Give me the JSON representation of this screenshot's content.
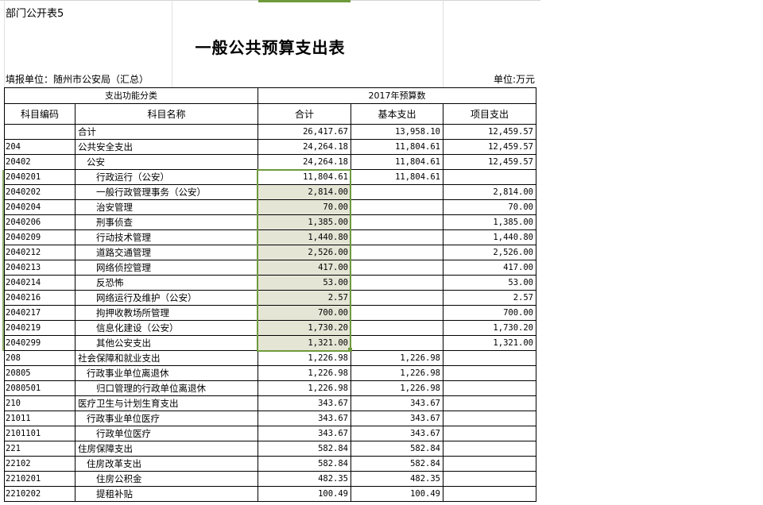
{
  "sheet_label": "部门公开表5",
  "title": "一般公共预算支出表",
  "reporting_unit": "填报单位：随州市公安局（汇总）",
  "currency_unit": "单位:万元",
  "headers": {
    "group_left": "支出功能分类",
    "group_right": "2017年预算数",
    "code": "科目编码",
    "name": "科目名称",
    "total": "合计",
    "basic": "基本支出",
    "project": "项目支出"
  },
  "selection_color": "#6e9a3c",
  "rows": [
    {
      "code": "",
      "name": "合计",
      "level": 1,
      "total": "26,417.67",
      "basic": "13,958.10",
      "project": "12,459.57"
    },
    {
      "code": "204",
      "name": "公共安全支出",
      "level": 1,
      "total": "24,264.18",
      "basic": "11,804.61",
      "project": "12,459.57"
    },
    {
      "code": "20402",
      "name": "公安",
      "level": 2,
      "total": "24,264.18",
      "basic": "11,804.61",
      "project": "12,459.57"
    },
    {
      "code": "2040201",
      "name": "行政运行（公安）",
      "level": 3,
      "total": "11,804.61",
      "basic": "11,804.61",
      "project": ""
    },
    {
      "code": "2040202",
      "name": "一般行政管理事务（公安）",
      "level": 3,
      "total": "2,814.00",
      "basic": "",
      "project": "2,814.00"
    },
    {
      "code": "2040204",
      "name": "治安管理",
      "level": 3,
      "total": "70.00",
      "basic": "",
      "project": "70.00"
    },
    {
      "code": "2040206",
      "name": "刑事侦查",
      "level": 3,
      "total": "1,385.00",
      "basic": "",
      "project": "1,385.00"
    },
    {
      "code": "2040209",
      "name": "行动技术管理",
      "level": 3,
      "total": "1,440.80",
      "basic": "",
      "project": "1,440.80"
    },
    {
      "code": "2040212",
      "name": "道路交通管理",
      "level": 3,
      "total": "2,526.00",
      "basic": "",
      "project": "2,526.00"
    },
    {
      "code": "2040213",
      "name": "网络侦控管理",
      "level": 3,
      "total": "417.00",
      "basic": "",
      "project": "417.00"
    },
    {
      "code": "2040214",
      "name": "反恐怖",
      "level": 3,
      "total": "53.00",
      "basic": "",
      "project": "53.00"
    },
    {
      "code": "2040216",
      "name": "网络运行及维护（公安）",
      "level": 3,
      "total": "2.57",
      "basic": "",
      "project": "2.57"
    },
    {
      "code": "2040217",
      "name": "拘押收教场所管理",
      "level": 3,
      "total": "700.00",
      "basic": "",
      "project": "700.00"
    },
    {
      "code": "2040219",
      "name": "信息化建设（公安）",
      "level": 3,
      "total": "1,730.20",
      "basic": "",
      "project": "1,730.20"
    },
    {
      "code": "2040299",
      "name": "其他公安支出",
      "level": 3,
      "total": "1,321.00",
      "basic": "",
      "project": "1,321.00"
    },
    {
      "code": "208",
      "name": "社会保障和就业支出",
      "level": 1,
      "total": "1,226.98",
      "basic": "1,226.98",
      "project": ""
    },
    {
      "code": "20805",
      "name": "行政事业单位离退休",
      "level": 2,
      "total": "1,226.98",
      "basic": "1,226.98",
      "project": ""
    },
    {
      "code": "2080501",
      "name": "归口管理的行政单位离退休",
      "level": 3,
      "total": "1,226.98",
      "basic": "1,226.98",
      "project": ""
    },
    {
      "code": "210",
      "name": "医疗卫生与计划生育支出",
      "level": 1,
      "total": "343.67",
      "basic": "343.67",
      "project": ""
    },
    {
      "code": "21011",
      "name": "行政事业单位医疗",
      "level": 2,
      "total": "343.67",
      "basic": "343.67",
      "project": ""
    },
    {
      "code": "2101101",
      "name": "行政单位医疗",
      "level": 3,
      "total": "343.67",
      "basic": "343.67",
      "project": ""
    },
    {
      "code": "221",
      "name": "住房保障支出",
      "level": 1,
      "total": "582.84",
      "basic": "582.84",
      "project": ""
    },
    {
      "code": "22102",
      "name": "住房改革支出",
      "level": 2,
      "total": "582.84",
      "basic": "582.84",
      "project": ""
    },
    {
      "code": "2210201",
      "name": "住房公积金",
      "level": 3,
      "total": "482.35",
      "basic": "482.35",
      "project": ""
    },
    {
      "code": "2210202",
      "name": "提租补贴",
      "level": 3,
      "total": "100.49",
      "basic": "100.49",
      "project": ""
    }
  ]
}
